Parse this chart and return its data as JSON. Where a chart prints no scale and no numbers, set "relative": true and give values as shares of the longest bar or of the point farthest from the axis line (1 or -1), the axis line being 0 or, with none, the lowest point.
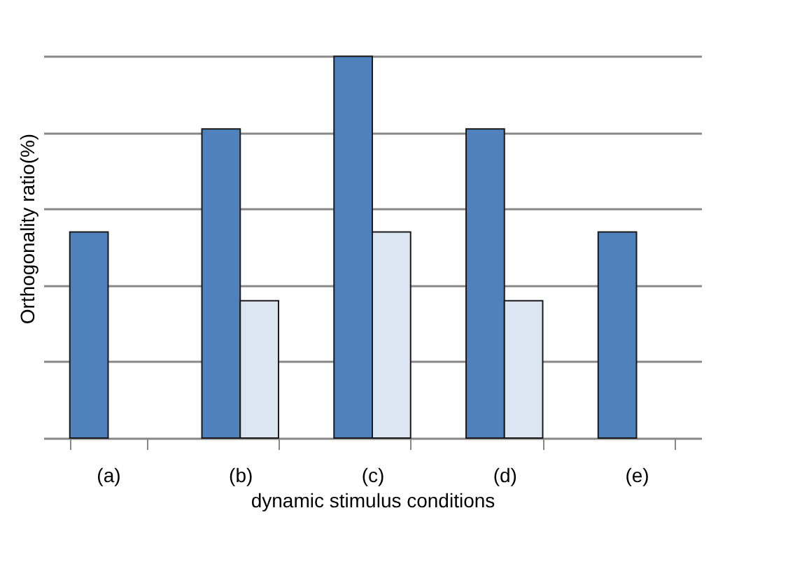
{
  "chart_data": {
    "type": "bar",
    "relative": true,
    "xlabel": "dynamic stimulus conditions",
    "ylabel": "Orthogonality ratio(%)",
    "categories": [
      "(a)",
      "(b)",
      "(c)",
      "(d)",
      "(e)"
    ],
    "series": [
      {
        "color": "#4f81bd",
        "values": [
          0.54,
          0.81,
          1,
          0.81,
          0.54
        ]
      },
      {
        "color": "#dce6f2",
        "values": [
          null,
          0.36,
          0.54,
          0.36,
          null
        ]
      }
    ],
    "grid": "y",
    "legend": false
  }
}
